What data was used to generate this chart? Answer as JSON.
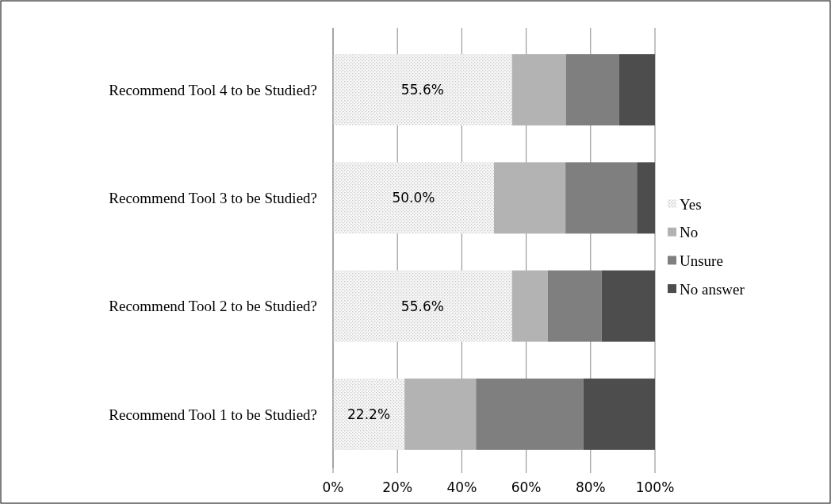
{
  "chart_data": {
    "type": "bar",
    "orientation": "horizontal",
    "stacked": true,
    "categories": [
      "Recommend Tool 4 to be Studied?",
      "Recommend Tool 3 to be Studied?",
      "Recommend Tool 2 to be Studied?",
      "Recommend Tool 1 to be Studied?"
    ],
    "series": [
      {
        "name": "Yes",
        "color": "#e6e6e6",
        "values": [
          55.6,
          50.0,
          55.6,
          22.2
        ],
        "value_labels": [
          "55.6%",
          "50.0%",
          "55.6%",
          "22.2%"
        ]
      },
      {
        "name": "No",
        "color": "#b3b3b3",
        "values": [
          16.7,
          22.2,
          11.1,
          22.2
        ]
      },
      {
        "name": "Unsure",
        "color": "#7f7f7f",
        "values": [
          16.6,
          22.2,
          16.7,
          33.4
        ]
      },
      {
        "name": "No answer",
        "color": "#4d4d4d",
        "values": [
          11.1,
          5.6,
          16.6,
          22.2
        ]
      }
    ],
    "xlim": [
      0,
      100
    ],
    "xticks": [
      {
        "value": 0,
        "label": "0%"
      },
      {
        "value": 20,
        "label": "20%"
      },
      {
        "value": 40,
        "label": "40%"
      },
      {
        "value": 60,
        "label": "60%"
      },
      {
        "value": 80,
        "label": "80%"
      },
      {
        "value": 100,
        "label": "100%"
      }
    ],
    "grid": "x",
    "legend": "right"
  }
}
